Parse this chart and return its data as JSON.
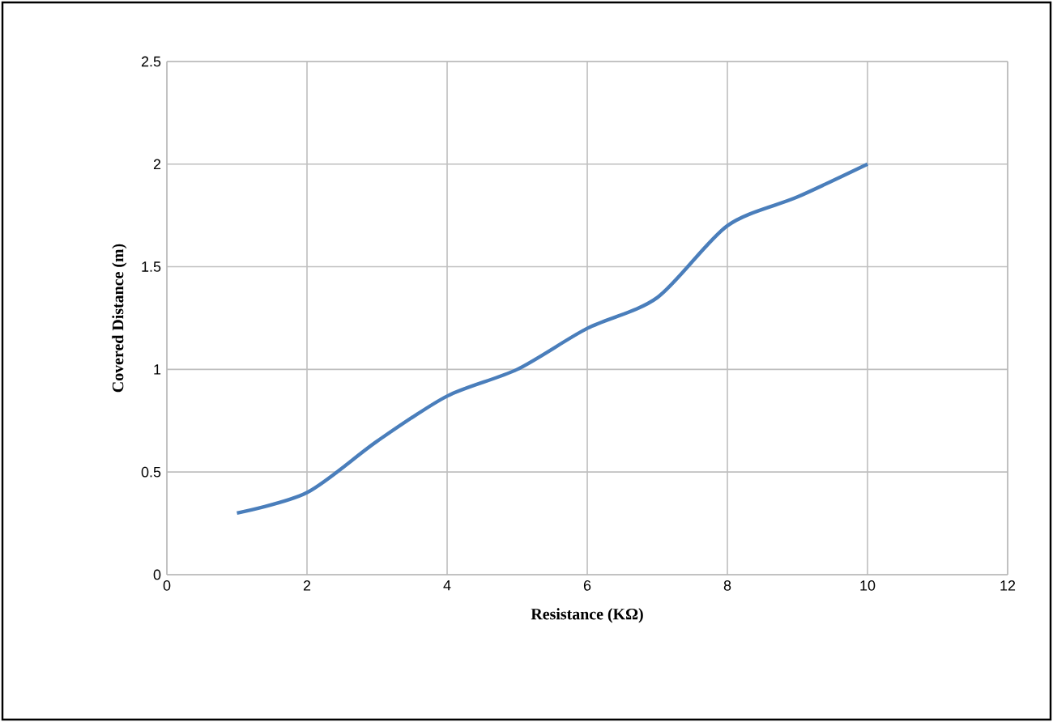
{
  "chart_data": {
    "type": "line",
    "xlabel": "Resistance (KΩ)",
    "ylabel": "Covered Distance (m)",
    "x": [
      1,
      2,
      3,
      4,
      5,
      6,
      7,
      8,
      9,
      10
    ],
    "series": [
      {
        "color": "#4a7ebb",
        "values": [
          0.3,
          0.4,
          0.65,
          0.87,
          1.0,
          1.2,
          1.35,
          1.7,
          1.84,
          2.0
        ]
      }
    ],
    "xlim": [
      0,
      12
    ],
    "xticks": [
      0,
      2,
      4,
      6,
      8,
      10,
      12
    ],
    "ylim": [
      0,
      2.5
    ],
    "yticks": [
      0,
      0.5,
      1,
      1.5,
      2,
      2.5
    ],
    "grid": true,
    "marker": "none",
    "line_style": "solid"
  }
}
